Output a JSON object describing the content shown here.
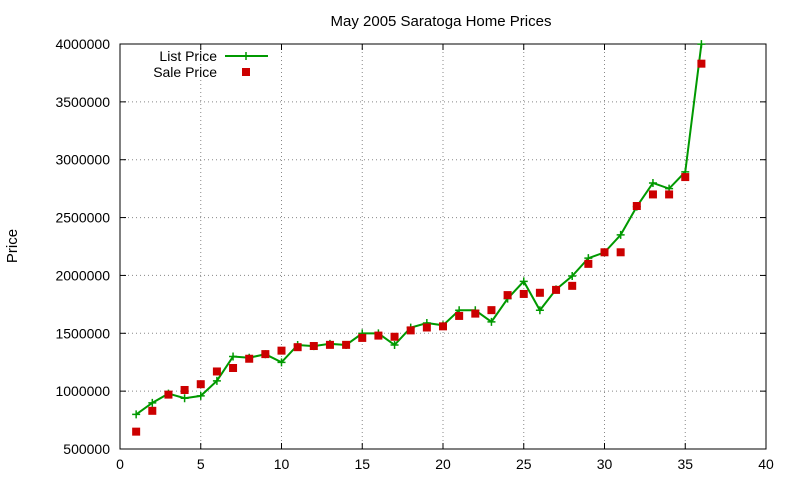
{
  "chart_data": {
    "type": "line",
    "title": "May 2005 Saratoga Home Prices",
    "xlabel": "",
    "ylabel": "Price",
    "xlim": [
      0,
      40
    ],
    "ylim": [
      500000,
      4000000
    ],
    "xticks": [
      0,
      5,
      10,
      15,
      20,
      25,
      30,
      35,
      40
    ],
    "yticks": [
      500000,
      1000000,
      1500000,
      2000000,
      2500000,
      3000000,
      3500000,
      4000000
    ],
    "grid": true,
    "legend_position": "top-left",
    "series": [
      {
        "name": "List Price",
        "style": "line-with-plus-markers",
        "color": "#009900",
        "x": [
          1,
          2,
          3,
          4,
          5,
          6,
          7,
          8,
          9,
          10,
          11,
          12,
          13,
          14,
          15,
          16,
          17,
          18,
          19,
          20,
          21,
          22,
          23,
          24,
          25,
          26,
          27,
          28,
          29,
          30,
          31,
          32,
          33,
          34,
          35,
          36
        ],
        "values": [
          799000,
          899000,
          979000,
          939000,
          959000,
          1089000,
          1299000,
          1289000,
          1319000,
          1249000,
          1399000,
          1389000,
          1409000,
          1399000,
          1499000,
          1499000,
          1399000,
          1549000,
          1589000,
          1569000,
          1699000,
          1699000,
          1599000,
          1799000,
          1949000,
          1699000,
          1879000,
          1995000,
          2149000,
          2199000,
          2350000,
          2595000,
          2799000,
          2750000,
          2895000,
          3999000
        ]
      },
      {
        "name": "Sale Price",
        "style": "square-markers",
        "color": "#cc0000",
        "x": [
          1,
          2,
          3,
          4,
          5,
          6,
          7,
          8,
          9,
          10,
          11,
          12,
          13,
          14,
          15,
          16,
          17,
          18,
          19,
          20,
          21,
          22,
          23,
          24,
          25,
          26,
          27,
          28,
          29,
          30,
          31,
          32,
          33,
          34,
          35,
          36
        ],
        "values": [
          650000,
          830000,
          970000,
          1010000,
          1060000,
          1170000,
          1200000,
          1280000,
          1320000,
          1350000,
          1380000,
          1390000,
          1400000,
          1400000,
          1460000,
          1480000,
          1470000,
          1525000,
          1550000,
          1560000,
          1650000,
          1670000,
          1700000,
          1830000,
          1840000,
          1850000,
          1875000,
          1910000,
          2100000,
          2200000,
          2200000,
          2600000,
          2700000,
          2700000,
          2850000,
          3830000
        ]
      }
    ]
  }
}
